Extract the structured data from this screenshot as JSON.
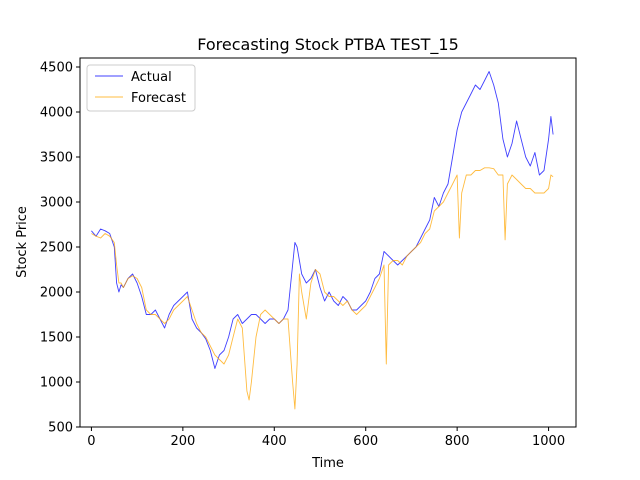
{
  "chart_data": {
    "type": "line",
    "title": "Forecasting Stock PTBA TEST_15",
    "xlabel": "Time",
    "ylabel": "Stock Price",
    "xlim": [
      -25,
      1060
    ],
    "ylim": [
      500,
      4600
    ],
    "xticks": [
      0,
      200,
      400,
      600,
      800,
      1000
    ],
    "yticks": [
      500,
      1000,
      1500,
      2000,
      2500,
      3000,
      3500,
      4000,
      4500
    ],
    "grid": false,
    "legend_position": "upper-left",
    "series": [
      {
        "name": "Actual",
        "color": "#0000ff",
        "x": [
          0,
          10,
          20,
          30,
          40,
          50,
          55,
          60,
          65,
          70,
          80,
          90,
          100,
          110,
          120,
          130,
          140,
          150,
          160,
          170,
          180,
          190,
          200,
          210,
          220,
          230,
          240,
          250,
          260,
          270,
          280,
          290,
          300,
          310,
          320,
          330,
          340,
          350,
          360,
          370,
          380,
          390,
          400,
          410,
          420,
          430,
          440,
          445,
          450,
          455,
          460,
          470,
          480,
          490,
          500,
          510,
          520,
          530,
          540,
          550,
          560,
          570,
          580,
          590,
          600,
          610,
          620,
          630,
          640,
          650,
          660,
          670,
          680,
          690,
          700,
          710,
          720,
          730,
          740,
          750,
          760,
          770,
          780,
          790,
          800,
          810,
          820,
          830,
          840,
          850,
          860,
          870,
          880,
          890,
          900,
          910,
          920,
          930,
          940,
          950,
          960,
          970,
          980,
          990,
          1000,
          1005,
          1010
        ],
        "y": [
          2680,
          2620,
          2700,
          2680,
          2650,
          2500,
          2100,
          2000,
          2080,
          2050,
          2150,
          2200,
          2100,
          1950,
          1750,
          1750,
          1800,
          1700,
          1600,
          1750,
          1850,
          1900,
          1950,
          2000,
          1700,
          1600,
          1550,
          1480,
          1350,
          1150,
          1300,
          1350,
          1500,
          1700,
          1750,
          1650,
          1700,
          1750,
          1750,
          1700,
          1650,
          1700,
          1700,
          1650,
          1700,
          1800,
          2300,
          2550,
          2500,
          2350,
          2200,
          2100,
          2150,
          2250,
          2050,
          1900,
          2000,
          1900,
          1850,
          1950,
          1900,
          1800,
          1800,
          1850,
          1900,
          2000,
          2150,
          2200,
          2450,
          2400,
          2350,
          2300,
          2350,
          2400,
          2450,
          2500,
          2600,
          2700,
          2800,
          3050,
          2950,
          3100,
          3200,
          3500,
          3800,
          4000,
          4100,
          4200,
          4300,
          4250,
          4350,
          4450,
          4300,
          4100,
          3700,
          3500,
          3650,
          3900,
          3700,
          3500,
          3400,
          3550,
          3300,
          3350,
          3700,
          3950,
          3750
        ]
      },
      {
        "name": "Forecast",
        "color": "#ffa500",
        "x": [
          0,
          10,
          20,
          30,
          40,
          50,
          55,
          60,
          65,
          70,
          80,
          90,
          100,
          110,
          120,
          130,
          140,
          150,
          160,
          170,
          180,
          190,
          200,
          210,
          220,
          230,
          240,
          250,
          260,
          270,
          280,
          290,
          300,
          310,
          320,
          330,
          340,
          345,
          350,
          360,
          370,
          380,
          390,
          400,
          410,
          420,
          430,
          440,
          445,
          450,
          455,
          460,
          470,
          480,
          490,
          500,
          510,
          520,
          530,
          540,
          550,
          560,
          570,
          580,
          590,
          600,
          610,
          620,
          630,
          640,
          645,
          650,
          660,
          670,
          680,
          690,
          700,
          710,
          720,
          730,
          740,
          750,
          760,
          770,
          780,
          790,
          800,
          805,
          810,
          820,
          830,
          840,
          850,
          860,
          870,
          880,
          890,
          900,
          905,
          910,
          920,
          930,
          940,
          950,
          960,
          970,
          980,
          990,
          1000,
          1005,
          1010
        ],
        "y": [
          2650,
          2620,
          2600,
          2650,
          2620,
          2550,
          2300,
          2100,
          2100,
          2050,
          2150,
          2180,
          2150,
          2050,
          1800,
          1750,
          1750,
          1700,
          1650,
          1700,
          1800,
          1850,
          1900,
          1950,
          1800,
          1650,
          1550,
          1500,
          1400,
          1300,
          1250,
          1200,
          1300,
          1500,
          1700,
          1600,
          900,
          800,
          1000,
          1500,
          1750,
          1800,
          1750,
          1700,
          1650,
          1700,
          1700,
          1000,
          700,
          1200,
          2200,
          2000,
          1700,
          2100,
          2250,
          2200,
          2000,
          1950,
          1950,
          1900,
          1850,
          1900,
          1800,
          1750,
          1800,
          1850,
          1950,
          2050,
          2150,
          2300,
          1200,
          2300,
          2350,
          2350,
          2300,
          2400,
          2450,
          2500,
          2550,
          2650,
          2700,
          2900,
          2950,
          3000,
          3100,
          3200,
          3300,
          2600,
          3100,
          3300,
          3300,
          3350,
          3350,
          3380,
          3380,
          3370,
          3300,
          3300,
          2580,
          3200,
          3300,
          3250,
          3200,
          3150,
          3150,
          3100,
          3100,
          3100,
          3150,
          3300,
          3280
        ]
      }
    ]
  }
}
